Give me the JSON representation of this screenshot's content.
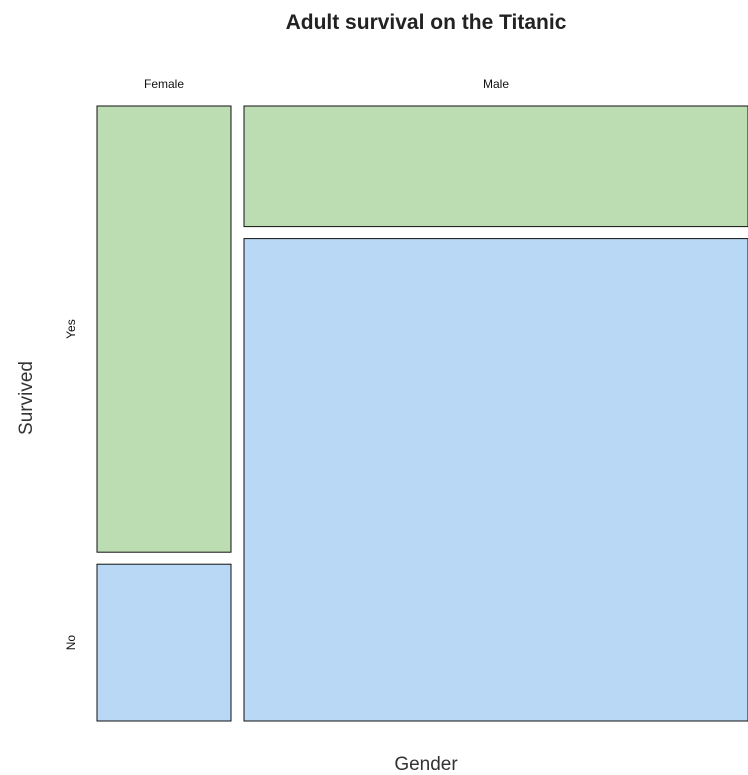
{
  "chart_data": {
    "type": "mosaic",
    "title": "Adult survival on the Titanic",
    "xlabel": "Gender",
    "ylabel": "Survived",
    "x_categories": [
      "Female",
      "Male"
    ],
    "y_categories": [
      "Yes",
      "No"
    ],
    "proportions": {
      "Female": {
        "Yes": 0.74,
        "No": 0.26
      },
      "Male": {
        "Yes": 0.2,
        "No": 0.8
      }
    },
    "x_shares": {
      "Female": 0.21,
      "Male": 0.79
    },
    "colors": {
      "Yes": "#bcdcb2",
      "No": "#b8d8f5",
      "border": "#111111"
    },
    "legend": "none",
    "grid": false
  }
}
